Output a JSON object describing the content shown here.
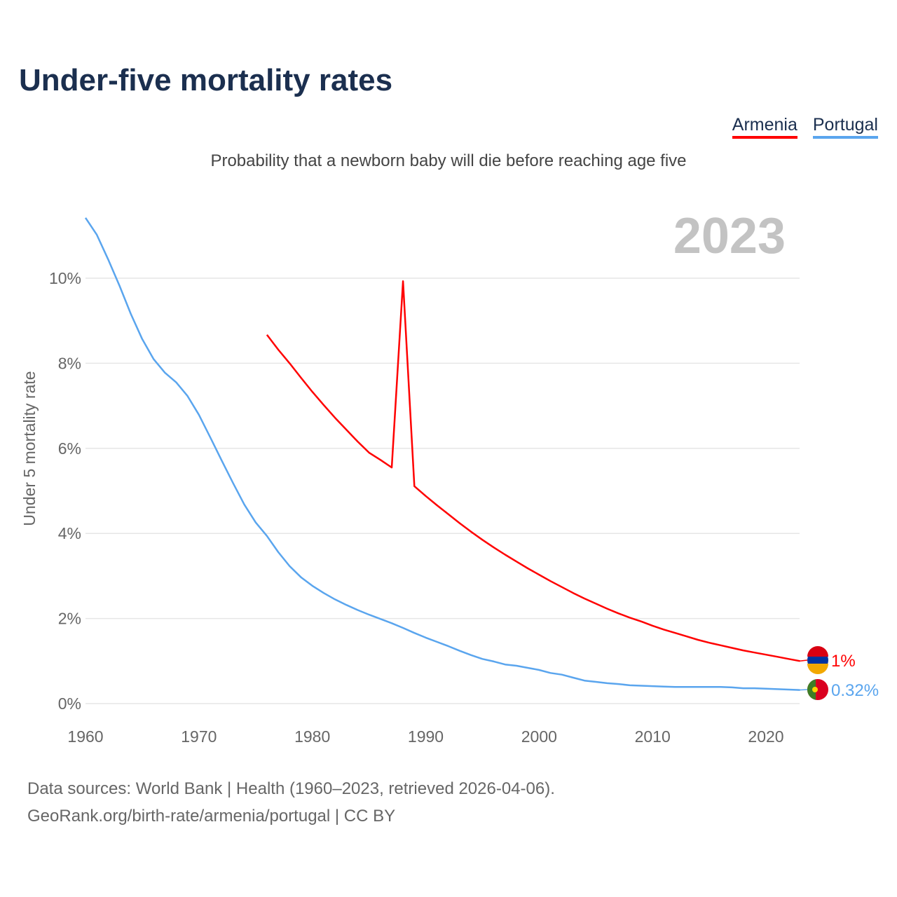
{
  "title": "Under-five mortality rates",
  "subtitle": "Probability that a newborn baby will die before reaching age five",
  "year_label": "2023",
  "footer": {
    "line1": "Data sources: World Bank | Health (1960–2023, retrieved 2026-04-06).",
    "line2": "GeoRank.org/birth-rate/armenia/portugal | CC BY"
  },
  "chart_data": {
    "type": "line",
    "title": "Under-five mortality rates",
    "xlabel": "",
    "ylabel": "Under 5 mortality rate",
    "xlim": [
      1960,
      2023
    ],
    "ylim": [
      0,
      11.5
    ],
    "xticks": [
      1960,
      1970,
      1980,
      1990,
      2000,
      2010,
      2020
    ],
    "yticks": [
      0,
      2,
      4,
      6,
      8,
      10
    ],
    "ytick_labels": [
      "0%",
      "2%",
      "4%",
      "6%",
      "8%",
      "10%"
    ],
    "grid": true,
    "legend": "top-right",
    "series": [
      {
        "name": "Armenia",
        "color": "#ff0000",
        "end_label": "1%",
        "start": 1976,
        "values": [
          8.67,
          8.32,
          8.0,
          7.66,
          7.33,
          7.02,
          6.72,
          6.44,
          6.16,
          5.9,
          5.73,
          5.55,
          9.93,
          5.11,
          4.88,
          4.66,
          4.45,
          4.24,
          4.04,
          3.85,
          3.67,
          3.5,
          3.34,
          3.18,
          3.03,
          2.88,
          2.74,
          2.6,
          2.47,
          2.35,
          2.23,
          2.12,
          2.02,
          1.93,
          1.83,
          1.74,
          1.66,
          1.58,
          1.5,
          1.43,
          1.37,
          1.31,
          1.25,
          1.2,
          1.15,
          1.1,
          1.05,
          1.0
        ]
      },
      {
        "name": "Portugal",
        "color": "#5aa5ee",
        "end_label": "0.32%",
        "start": 1960,
        "values": [
          11.42,
          11.02,
          10.44,
          9.82,
          9.16,
          8.57,
          8.1,
          7.78,
          7.55,
          7.23,
          6.79,
          6.26,
          5.72,
          5.19,
          4.68,
          4.26,
          3.94,
          3.56,
          3.23,
          2.97,
          2.77,
          2.6,
          2.45,
          2.32,
          2.2,
          2.09,
          1.99,
          1.89,
          1.78,
          1.66,
          1.55,
          1.45,
          1.35,
          1.24,
          1.14,
          1.05,
          0.99,
          0.92,
          0.89,
          0.84,
          0.79,
          0.72,
          0.68,
          0.61,
          0.54,
          0.51,
          0.48,
          0.46,
          0.43,
          0.42,
          0.41,
          0.4,
          0.39,
          0.39,
          0.39,
          0.39,
          0.39,
          0.38,
          0.36,
          0.36,
          0.35,
          0.34,
          0.33,
          0.32
        ]
      }
    ]
  }
}
